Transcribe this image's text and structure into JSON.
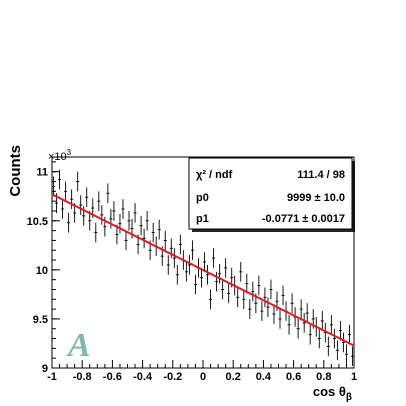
{
  "chart_data": {
    "type": "scatter",
    "xlabel": "cos θ",
    "xlabel_sub": "β",
    "ylabel": "Counts",
    "y_multiplier_base": "×10",
    "y_multiplier_exp": "3",
    "xlim": [
      -1,
      1
    ],
    "ylim": [
      9.0,
      11.15
    ],
    "x_ticks": [
      -1,
      -0.8,
      -0.6,
      -0.4,
      -0.2,
      0,
      0.2,
      0.4,
      0.6,
      0.8,
      1
    ],
    "x_tick_labels": [
      "-1",
      "-0.8",
      "-0.6",
      "-0.4",
      "-0.2",
      "0",
      "0.2",
      "0.4",
      "0.6",
      "0.8",
      "1"
    ],
    "y_ticks": [
      9,
      9.5,
      10,
      10.5,
      11
    ],
    "y_tick_labels": [
      "9",
      "9.5",
      "10",
      "10.5",
      "11"
    ],
    "panel_letter": "A",
    "grid": false,
    "fit": {
      "color": "#e41a1c",
      "intercept": 9.999,
      "slope": -0.771,
      "stats": [
        {
          "label": "χ² / ndf",
          "value": "111.4 / 98"
        },
        {
          "label": "p0",
          "value": "9999 ± 10.0"
        },
        {
          "label": "p1",
          "value": "-0.0771 ± 0.0017"
        }
      ]
    },
    "series": [
      {
        "x": [
          -0.99,
          -0.97,
          -0.95,
          -0.93,
          -0.91,
          -0.89,
          -0.87,
          -0.85,
          -0.83,
          -0.81,
          -0.79,
          -0.77,
          -0.75,
          -0.73,
          -0.71,
          -0.69,
          -0.67,
          -0.65,
          -0.63,
          -0.61,
          -0.59,
          -0.57,
          -0.55,
          -0.53,
          -0.51,
          -0.49,
          -0.47,
          -0.45,
          -0.43,
          -0.41,
          -0.39,
          -0.37,
          -0.35,
          -0.33,
          -0.31,
          -0.29,
          -0.27,
          -0.25,
          -0.23,
          -0.21,
          -0.19,
          -0.17,
          -0.15,
          -0.13,
          -0.11,
          -0.09,
          -0.07,
          -0.05,
          -0.03,
          -0.01,
          0.01,
          0.03,
          0.05,
          0.07,
          0.09,
          0.11,
          0.13,
          0.15,
          0.17,
          0.19,
          0.21,
          0.23,
          0.25,
          0.27,
          0.29,
          0.31,
          0.33,
          0.35,
          0.37,
          0.39,
          0.41,
          0.43,
          0.45,
          0.47,
          0.49,
          0.51,
          0.53,
          0.55,
          0.57,
          0.59,
          0.61,
          0.63,
          0.65,
          0.67,
          0.69,
          0.71,
          0.73,
          0.75,
          0.77,
          0.79,
          0.81,
          0.83,
          0.85,
          0.87,
          0.89,
          0.91,
          0.93,
          0.95,
          0.97,
          0.99
        ],
        "y": [
          10.85,
          10.68,
          10.92,
          10.62,
          10.8,
          10.48,
          10.72,
          10.58,
          10.9,
          10.66,
          10.55,
          10.74,
          10.5,
          10.63,
          10.38,
          10.7,
          10.56,
          10.44,
          10.78,
          10.52,
          10.6,
          10.36,
          10.47,
          10.62,
          10.3,
          10.5,
          10.42,
          10.58,
          10.26,
          10.45,
          10.32,
          10.5,
          10.2,
          10.38,
          10.24,
          10.41,
          10.14,
          10.3,
          10.05,
          10.22,
          10.12,
          9.95,
          10.26,
          10.1,
          9.98,
          10.05,
          10.2,
          9.85,
          10.02,
          9.92,
          10.08,
          9.95,
          9.7,
          10.12,
          9.88,
          9.96,
          9.8,
          10.02,
          9.76,
          9.92,
          9.84,
          9.72,
          9.98,
          9.7,
          9.86,
          9.6,
          9.78,
          9.66,
          9.84,
          9.58,
          9.72,
          9.62,
          9.8,
          9.55,
          9.68,
          9.5,
          9.74,
          9.58,
          9.44,
          9.66,
          9.52,
          9.4,
          9.6,
          9.46,
          9.56,
          9.34,
          9.5,
          9.42,
          9.3,
          9.48,
          9.36,
          9.22,
          9.44,
          9.3,
          9.18,
          9.38,
          9.26,
          9.14,
          9.34,
          9.12
        ],
        "err": 0.1
      }
    ]
  }
}
